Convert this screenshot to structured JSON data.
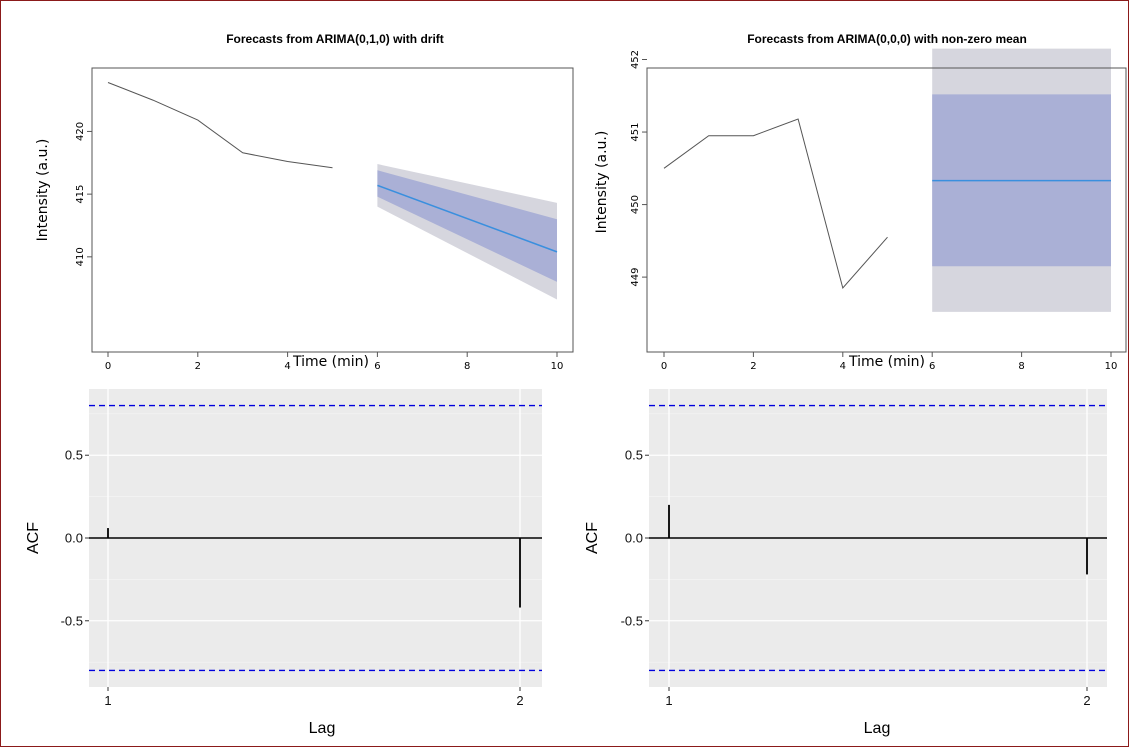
{
  "chart_data": [
    {
      "type": "line",
      "title": "Forecasts from ARIMA(0,1,0) with drift",
      "xlabel": "Time (min)",
      "ylabel": "Intensity (a.u.)",
      "xlim": [
        0,
        10
      ],
      "ylim": [
        406,
        424.5
      ],
      "xticks": [
        0,
        2,
        4,
        6,
        8,
        10
      ],
      "yticks": [
        410,
        415,
        420
      ],
      "grid": false,
      "series": [
        {
          "x": [
            0,
            1,
            2,
            3,
            4,
            5
          ],
          "y": [
            423.9,
            422.5,
            420.9,
            418.3,
            417.6,
            417.1
          ],
          "color": "#555555"
        }
      ],
      "forecast": {
        "x": [
          6,
          10
        ],
        "mean": [
          415.7,
          410.4
        ],
        "lo80": [
          414.8,
          408.0
        ],
        "hi80": [
          416.9,
          413.0
        ],
        "lo95": [
          414.0,
          406.6
        ],
        "hi95": [
          417.4,
          414.3
        ]
      },
      "colors": {
        "mean": "#3a8fde",
        "band80": "#aab0d6",
        "band95": "#d6d6de"
      }
    },
    {
      "type": "line",
      "title": "Forecasts from ARIMA(0,0,0) with non-zero mean",
      "xlabel": "Time (min)",
      "ylabel": "Intensity (a.u.)",
      "xlim": [
        0,
        10
      ],
      "ylim": [
        448.45,
        452.2
      ],
      "xticks": [
        0,
        2,
        4,
        6,
        8,
        10
      ],
      "yticks": [
        449,
        450,
        451,
        452
      ],
      "grid": false,
      "series": [
        {
          "x": [
            0,
            1,
            2,
            3,
            4,
            5
          ],
          "y": [
            450.5,
            450.95,
            450.95,
            451.18,
            448.85,
            449.55
          ],
          "color": "#555555"
        }
      ],
      "forecast": {
        "x": [
          6,
          10
        ],
        "mean": [
          450.33,
          450.33
        ],
        "lo80": [
          449.15,
          449.15
        ],
        "hi80": [
          451.52,
          451.52
        ],
        "lo95": [
          448.52,
          448.52
        ],
        "hi95": [
          452.15,
          452.15
        ]
      },
      "colors": {
        "mean": "#3a8fde",
        "band80": "#aab0d6",
        "band95": "#d6d6de"
      }
    },
    {
      "type": "bar",
      "xlabel": "Lag",
      "ylabel": "ACF",
      "categories": [
        "1",
        "2"
      ],
      "values": [
        0.06,
        -0.42
      ],
      "ylim": [
        -0.9,
        0.9
      ],
      "yticks": [
        0.5,
        0.0,
        -0.5
      ],
      "ytick_labels": [
        "0.5",
        "0.0",
        "-0.5"
      ],
      "confidence_bound": 0.8,
      "grid": true,
      "colors": {
        "panel": "#ebebeb",
        "bound": "#0000dd",
        "bar": "#000000"
      }
    },
    {
      "type": "bar",
      "xlabel": "Lag",
      "ylabel": "ACF",
      "categories": [
        "1",
        "2"
      ],
      "values": [
        0.2,
        -0.22
      ],
      "ylim": [
        -0.9,
        0.9
      ],
      "yticks": [
        0.5,
        0.0,
        -0.5
      ],
      "ytick_labels": [
        "0.5",
        "0.0",
        "-0.5"
      ],
      "confidence_bound": 0.8,
      "grid": true,
      "colors": {
        "panel": "#ebebeb",
        "bound": "#0000dd",
        "bar": "#000000"
      }
    }
  ]
}
